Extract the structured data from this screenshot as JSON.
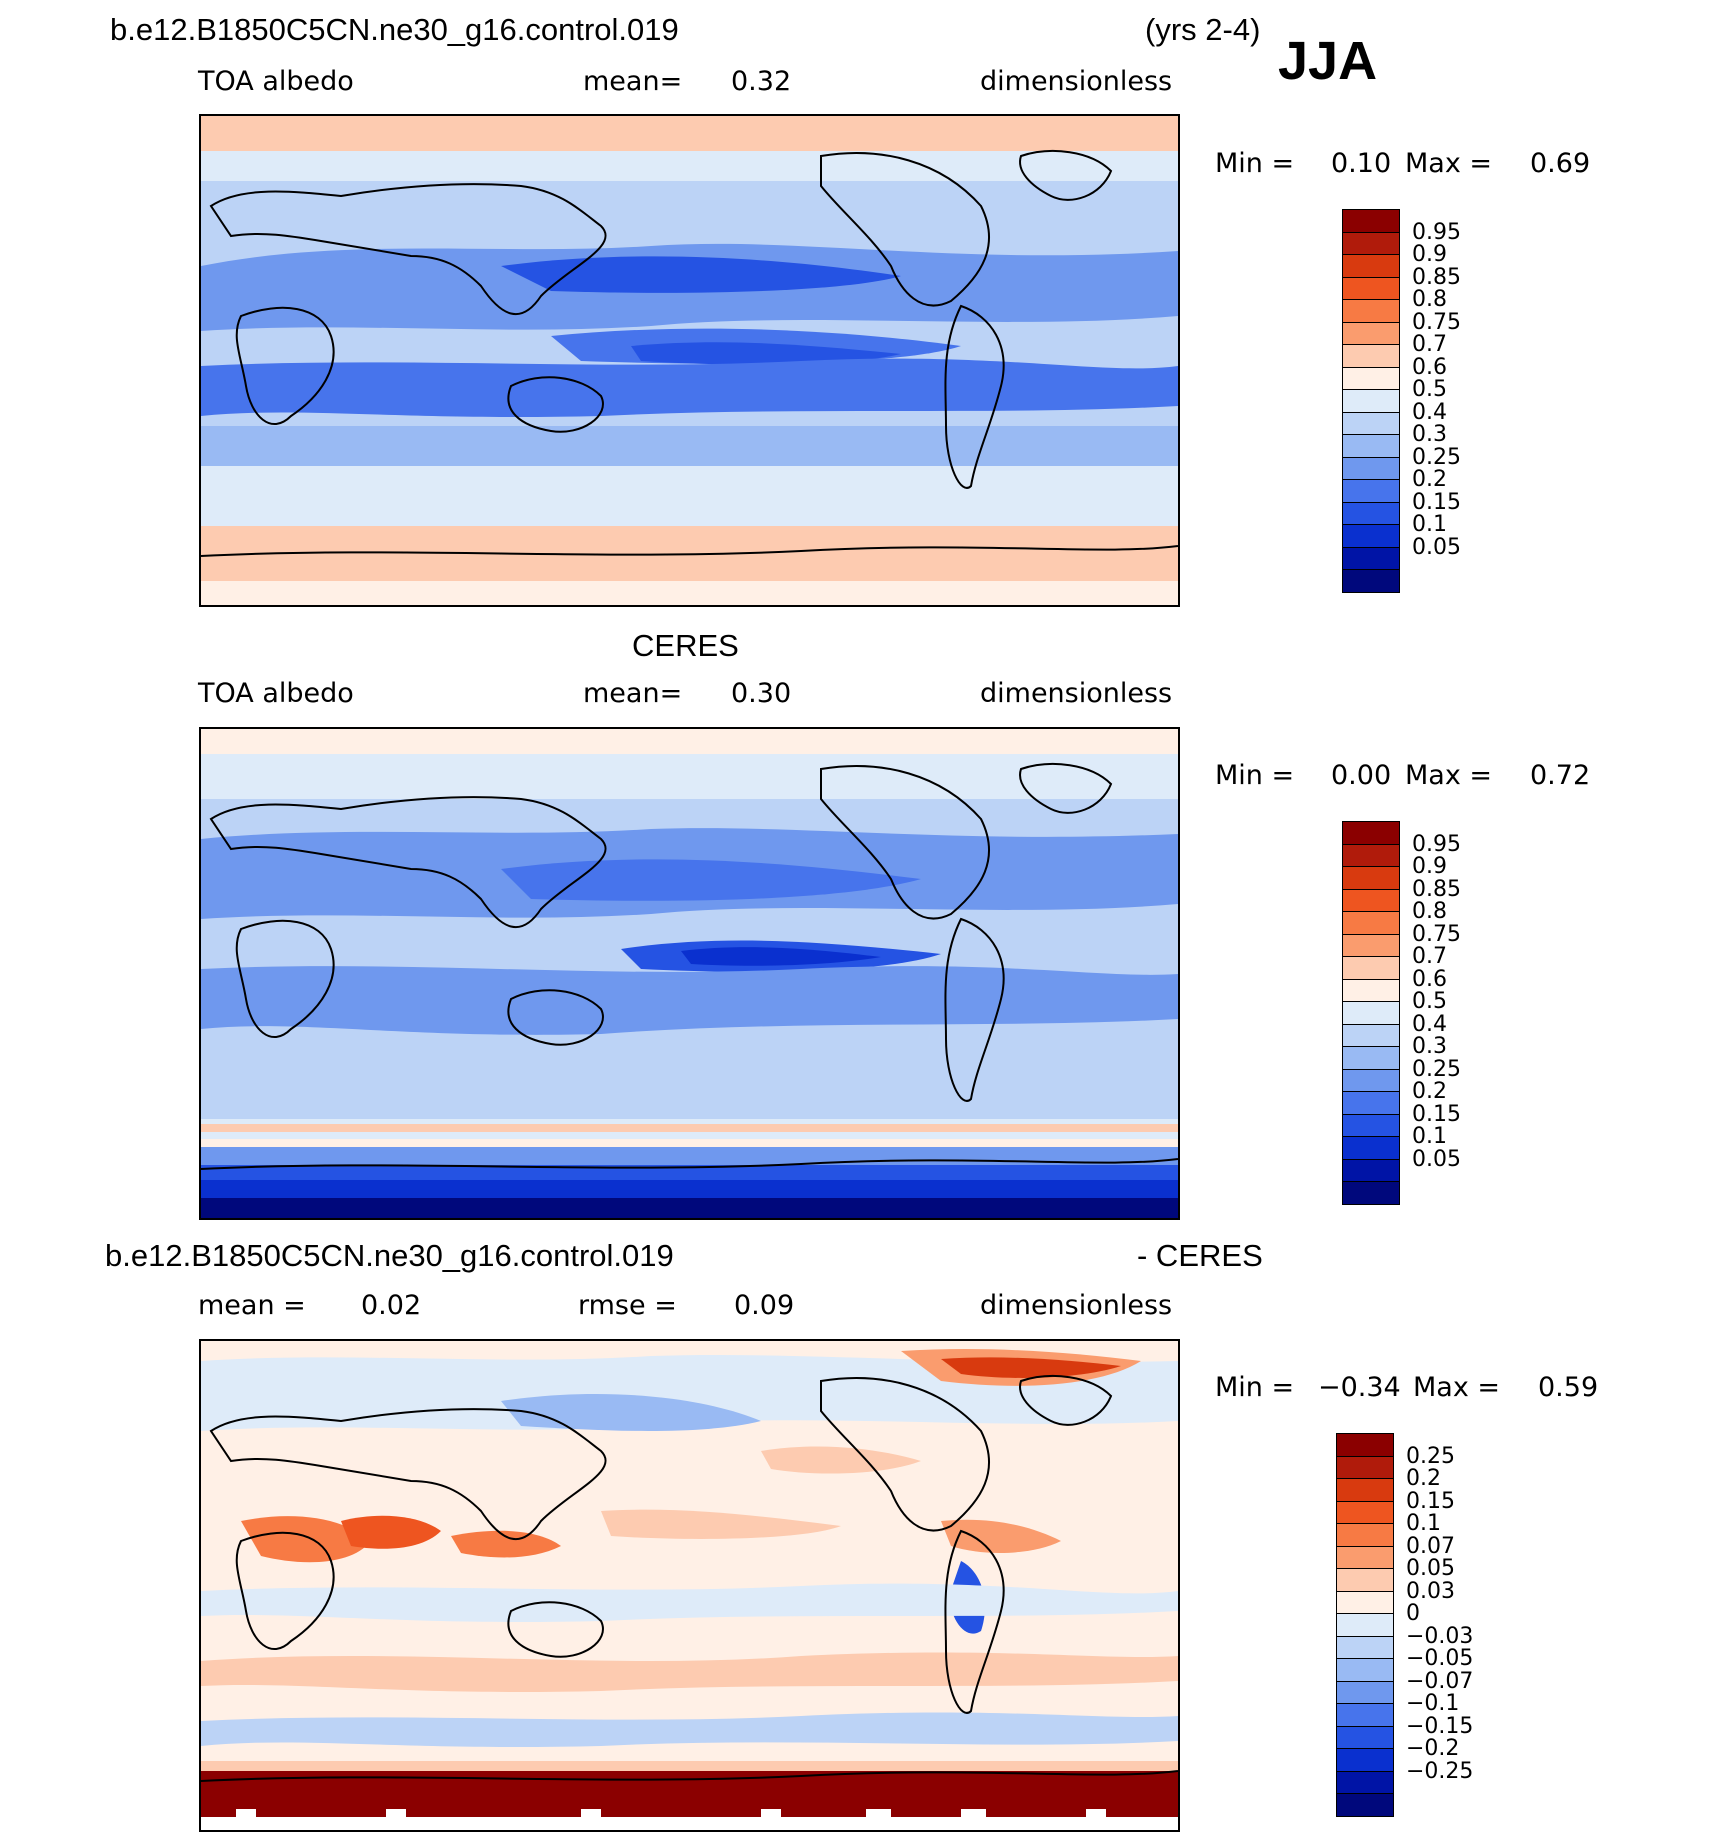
{
  "header": {
    "case_name": "b.e12.B1850C5CN.ne30_g16.control.019",
    "years": "(yrs 2-4)",
    "season": "JJA"
  },
  "panels": [
    {
      "id": "model",
      "title": "",
      "variable": "TOA albedo",
      "mean_label": "mean=",
      "mean_value": "0.32",
      "units": "dimensionless",
      "min_label": "Min =",
      "min_value": "0.10",
      "max_label": "Max =",
      "max_value": "0.69"
    },
    {
      "id": "obs",
      "title": "CERES",
      "variable": "TOA albedo",
      "mean_label": "mean=",
      "mean_value": "0.30",
      "units": "dimensionless",
      "min_label": "Min =",
      "min_value": "0.00",
      "max_label": "Max =",
      "max_value": "0.72"
    },
    {
      "id": "diff",
      "title_left": "b.e12.B1850C5CN.ne30_g16.control.019",
      "title_right": "- CERES",
      "mean_label": "mean =",
      "mean_value": "0.02",
      "rmse_label": "rmse =",
      "rmse_value": "0.09",
      "units": "dimensionless",
      "min_label": "Min =",
      "min_value": "−0.34",
      "max_label": "Max =",
      "max_value": "0.59"
    }
  ],
  "colorbars": {
    "albedo": {
      "colors": [
        "#8b0000",
        "#b01b0b",
        "#d83a0f",
        "#ee5520",
        "#f77a44",
        "#fa9c6e",
        "#fdcbb0",
        "#fff0e6",
        "#deebf9",
        "#bcd3f6",
        "#99baf3",
        "#6f98ee",
        "#4774ec",
        "#2553e3",
        "#0a30cf",
        "#0014a6",
        "#00087c"
      ],
      "labels": [
        "0.95",
        "0.9",
        "0.85",
        "0.8",
        "0.75",
        "0.7",
        "0.6",
        "0.5",
        "0.4",
        "0.3",
        "0.25",
        "0.2",
        "0.15",
        "0.1",
        "0.05"
      ]
    },
    "difference": {
      "colors": [
        "#8b0000",
        "#b01b0b",
        "#d83a0f",
        "#ee5520",
        "#f77a44",
        "#fa9c6e",
        "#fdcbb0",
        "#fff0e6",
        "#deebf9",
        "#bcd3f6",
        "#99baf3",
        "#6f98ee",
        "#4774ec",
        "#2553e3",
        "#0a30cf",
        "#0014a6",
        "#00087c"
      ],
      "labels": [
        "0.25",
        "0.2",
        "0.15",
        "0.1",
        "0.07",
        "0.05",
        "0.03",
        "0",
        "−0.03",
        "−0.05",
        "−0.07",
        "−0.1",
        "−0.15",
        "−0.2",
        "−0.25"
      ]
    }
  }
}
